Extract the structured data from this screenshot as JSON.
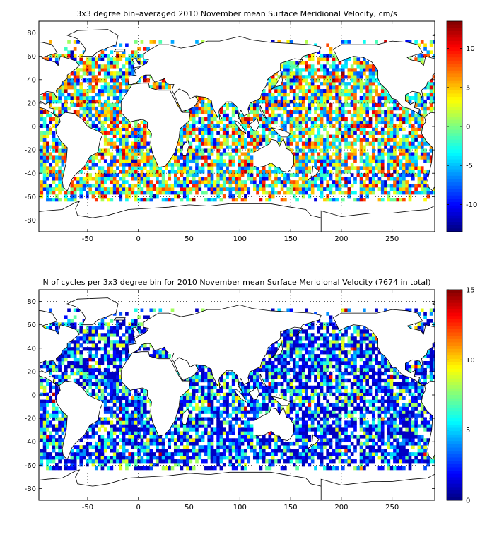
{
  "figures": [
    {
      "id": "velocity",
      "title": "3x3 degree bin–averaged 2010 November mean Surface Meridional Velocity, cm/s",
      "x_ticks": [
        "-50",
        "0",
        "50",
        "100",
        "150",
        "200",
        "250"
      ],
      "y_ticks": [
        "80",
        "60",
        "40",
        "20",
        "0",
        "-20",
        "-40",
        "-60",
        "-80"
      ],
      "colorbar_ticks": [
        "10",
        "5",
        "0",
        "-5",
        "-10"
      ],
      "colormap": "jet",
      "color_range": [
        -13.5,
        13.5
      ]
    },
    {
      "id": "cycles",
      "title": "N of cycles per 3x3 degree bin for 2010 November mean Surface Meridional Velocity (7674 in total)",
      "x_ticks": [
        "-50",
        "0",
        "50",
        "100",
        "150",
        "200",
        "250"
      ],
      "y_ticks": [
        "80",
        "60",
        "40",
        "20",
        "0",
        "-20",
        "-40",
        "-60",
        "-80"
      ],
      "colorbar_ticks": [
        "15",
        "10",
        "5",
        "0"
      ],
      "colormap": "jet",
      "color_range": [
        0,
        15
      ]
    }
  ],
  "map_extent": {
    "lon": [
      -98,
      292
    ],
    "lat": [
      -90,
      90
    ]
  },
  "bin_size_degrees": 3,
  "grid": "dotted",
  "coastline_color": "#000000"
}
